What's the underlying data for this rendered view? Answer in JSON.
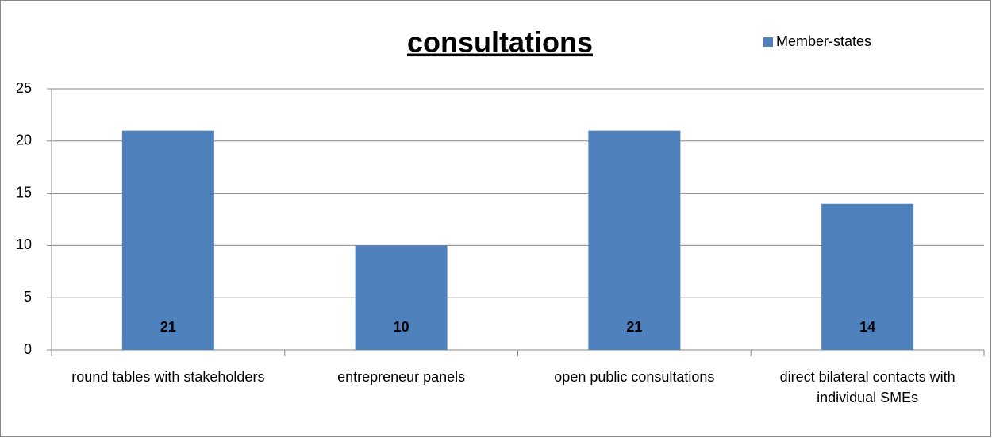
{
  "chart_data": {
    "type": "bar",
    "title": "consultations",
    "categories": [
      "round tables with stakeholders",
      "entrepreneur panels",
      "open public consultations",
      "direct bilateral contacts with individual SMEs"
    ],
    "series": [
      {
        "name": "Member-states",
        "color": "#4f81bd",
        "values": [
          21,
          10,
          21,
          14
        ]
      }
    ],
    "ylim": [
      0,
      25
    ],
    "yticks": [
      0,
      5,
      10,
      15,
      20,
      25
    ],
    "grid": true,
    "legend": "top-right"
  }
}
